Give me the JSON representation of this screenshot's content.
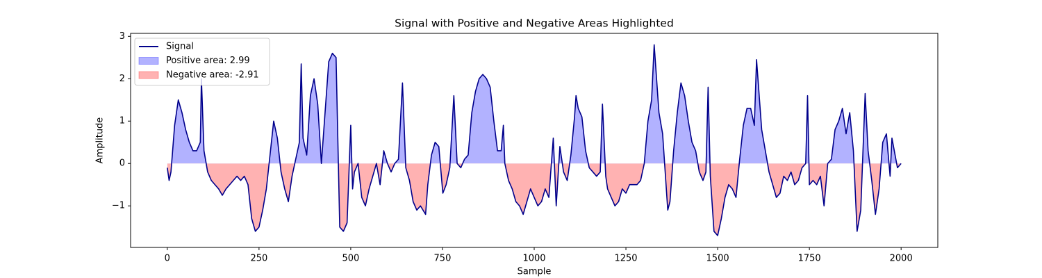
{
  "chart_data": {
    "type": "line",
    "title": "Signal with Positive and Negative Areas Highlighted",
    "xlabel": "Sample",
    "ylabel": "Amplitude",
    "x": [
      0,
      5,
      10,
      20,
      30,
      40,
      50,
      60,
      70,
      80,
      90,
      93,
      100,
      110,
      120,
      130,
      140,
      150,
      160,
      170,
      180,
      190,
      200,
      210,
      220,
      225,
      230,
      240,
      250,
      260,
      270,
      280,
      290,
      300,
      310,
      320,
      330,
      340,
      350,
      360,
      365,
      370,
      380,
      390,
      400,
      410,
      420,
      430,
      440,
      450,
      460,
      470,
      480,
      490,
      500,
      505,
      510,
      520,
      530,
      540,
      550,
      560,
      570,
      580,
      590,
      600,
      610,
      620,
      630,
      641,
      650,
      660,
      670,
      680,
      690,
      704,
      710,
      720,
      730,
      740,
      751,
      760,
      770,
      781,
      790,
      800,
      810,
      820,
      830,
      840,
      850,
      860,
      870,
      880,
      890,
      900,
      910,
      916,
      920,
      930,
      940,
      950,
      960,
      970,
      980,
      990,
      1000,
      1010,
      1020,
      1030,
      1040,
      1052,
      1060,
      1070,
      1080,
      1090,
      1100,
      1110,
      1114,
      1120,
      1130,
      1140,
      1150,
      1160,
      1170,
      1180,
      1186,
      1195,
      1200,
      1210,
      1220,
      1230,
      1240,
      1250,
      1260,
      1270,
      1280,
      1290,
      1300,
      1310,
      1320,
      1327,
      1340,
      1350,
      1364,
      1370,
      1380,
      1390,
      1400,
      1410,
      1420,
      1430,
      1440,
      1450,
      1460,
      1468,
      1474,
      1480,
      1490,
      1500,
      1510,
      1520,
      1530,
      1540,
      1550,
      1560,
      1570,
      1580,
      1590,
      1600,
      1606,
      1620,
      1630,
      1640,
      1650,
      1660,
      1670,
      1680,
      1690,
      1700,
      1710,
      1720,
      1730,
      1740,
      1745,
      1750,
      1760,
      1770,
      1780,
      1790,
      1800,
      1810,
      1820,
      1830,
      1840,
      1850,
      1860,
      1870,
      1880,
      1890,
      1902,
      1910,
      1920,
      1930,
      1940,
      1950,
      1960,
      1970,
      1975,
      1990,
      2000
    ],
    "series": [
      {
        "name": "Signal",
        "color": "#00008b",
        "values": [
          -0.1,
          -0.4,
          -0.2,
          0.9,
          1.5,
          1.2,
          0.8,
          0.5,
          0.3,
          0.3,
          0.5,
          2.0,
          0.3,
          -0.2,
          -0.4,
          -0.5,
          -0.6,
          -0.75,
          -0.6,
          -0.5,
          -0.4,
          -0.3,
          -0.4,
          -0.3,
          -0.5,
          -0.9,
          -1.3,
          -1.6,
          -1.5,
          -1.1,
          -0.6,
          0.2,
          1.0,
          0.6,
          -0.2,
          -0.6,
          -0.9,
          -0.3,
          0.1,
          0.5,
          2.35,
          0.6,
          0.2,
          1.6,
          2.0,
          1.4,
          0.0,
          1.2,
          2.4,
          2.6,
          2.5,
          -1.5,
          -1.6,
          -1.4,
          0.9,
          -0.6,
          -0.2,
          0.0,
          -0.8,
          -1.0,
          -0.6,
          -0.3,
          0.0,
          -0.5,
          0.3,
          0.0,
          -0.2,
          0.0,
          0.1,
          1.9,
          -0.1,
          -0.4,
          -0.9,
          -1.1,
          -1.0,
          -1.2,
          -0.5,
          0.2,
          0.5,
          0.4,
          -0.7,
          -0.5,
          -0.1,
          1.6,
          0.0,
          -0.1,
          0.1,
          0.2,
          1.2,
          1.7,
          2.0,
          2.1,
          2.0,
          1.8,
          1.0,
          0.3,
          0.3,
          0.9,
          0.0,
          -0.4,
          -0.6,
          -0.9,
          -1.0,
          -1.2,
          -0.9,
          -0.6,
          -0.8,
          -1.0,
          -0.9,
          -0.6,
          -0.8,
          0.6,
          -1.0,
          0.4,
          -0.2,
          -0.4,
          0.2,
          1.1,
          1.6,
          1.3,
          1.1,
          0.3,
          -0.1,
          -0.2,
          -0.3,
          -0.2,
          1.4,
          -0.3,
          -0.6,
          -0.8,
          -1.0,
          -0.9,
          -0.6,
          -0.7,
          -0.5,
          -0.5,
          -0.5,
          -0.4,
          0.0,
          1.0,
          1.5,
          2.8,
          1.2,
          0.7,
          -1.1,
          -0.9,
          0.3,
          1.2,
          1.9,
          1.6,
          1.0,
          0.5,
          0.3,
          -0.2,
          -0.4,
          -0.2,
          1.8,
          -0.3,
          -1.6,
          -1.7,
          -1.3,
          -0.8,
          -0.5,
          -0.6,
          -0.8,
          0.1,
          0.9,
          1.3,
          1.3,
          0.9,
          2.45,
          0.8,
          0.3,
          -0.2,
          -0.5,
          -0.8,
          -0.7,
          -0.3,
          -0.4,
          -0.2,
          -0.5,
          -0.4,
          -0.1,
          0.0,
          1.6,
          -0.5,
          -0.4,
          -0.5,
          -0.3,
          -1.0,
          0.0,
          0.1,
          0.8,
          1.0,
          1.3,
          0.7,
          1.2,
          0.3,
          -1.6,
          -1.1,
          1.65,
          0.3,
          -0.4,
          -1.2,
          -0.6,
          0.5,
          0.7,
          -0.3,
          0.6,
          -0.1,
          0.0
        ]
      }
    ],
    "fill_above": {
      "name": "Positive area: 2.99",
      "color": "#0000ff"
    },
    "fill_below": {
      "name": "Negative area: -2.91",
      "color": "#ff0000"
    },
    "fill_alpha": 0.3,
    "xlim": [
      -100,
      2100
    ],
    "ylim": [
      -1.98,
      3.07
    ],
    "xticks": [
      0,
      250,
      500,
      750,
      1000,
      1250,
      1500,
      1750,
      2000
    ],
    "yticks": [
      {
        "value": -1,
        "label": "−1"
      },
      0,
      1,
      2,
      3
    ],
    "legend": "upper left"
  }
}
